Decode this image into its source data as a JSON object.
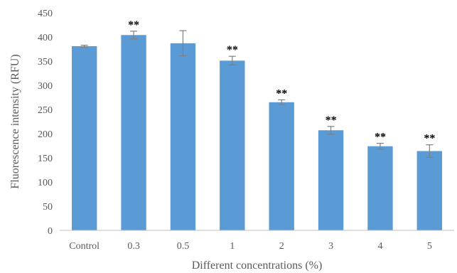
{
  "chart_data": {
    "type": "bar",
    "title": "",
    "xlabel": "Different concentrations (%)",
    "ylabel": "Fluorescence intensity (RFU)",
    "ylim": [
      0,
      450
    ],
    "yticks": [
      0,
      50,
      100,
      150,
      200,
      250,
      300,
      350,
      400,
      450
    ],
    "categories": [
      "Control",
      "0.3",
      "0.5",
      "1",
      "2",
      "3",
      "4",
      "5"
    ],
    "values": [
      381,
      404,
      387,
      351,
      265,
      207,
      174,
      164
    ],
    "errors": [
      2,
      8,
      26,
      9,
      5,
      8,
      6,
      13
    ],
    "significance": [
      "",
      "**",
      "",
      "**",
      "**",
      "**",
      "**",
      "**"
    ],
    "grid": false,
    "legend": "none",
    "bar_color": "#5b9bd5",
    "error_color": "#7f7f7f"
  }
}
